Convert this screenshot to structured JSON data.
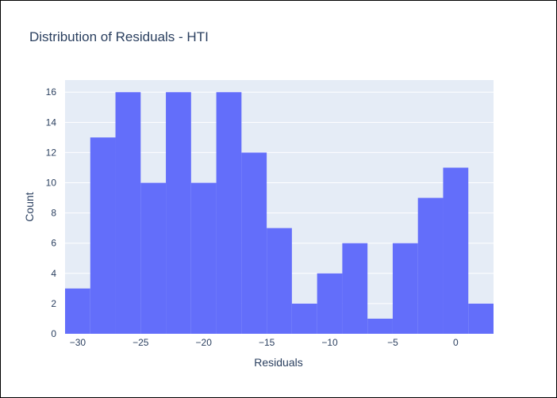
{
  "chart_data": {
    "type": "bar",
    "title": "Distribution of Residuals - HTI",
    "xlabel": "Residuals",
    "ylabel": "Count",
    "bin_width": 2,
    "bins": [
      {
        "x0": -31,
        "x1": -29,
        "count": 3
      },
      {
        "x0": -29,
        "x1": -27,
        "count": 13
      },
      {
        "x0": -27,
        "x1": -25,
        "count": 16
      },
      {
        "x0": -25,
        "x1": -23,
        "count": 10
      },
      {
        "x0": -23,
        "x1": -21,
        "count": 16
      },
      {
        "x0": -21,
        "x1": -19,
        "count": 10
      },
      {
        "x0": -19,
        "x1": -17,
        "count": 16
      },
      {
        "x0": -17,
        "x1": -15,
        "count": 12
      },
      {
        "x0": -15,
        "x1": -13,
        "count": 7
      },
      {
        "x0": -13,
        "x1": -11,
        "count": 2
      },
      {
        "x0": -11,
        "x1": -9,
        "count": 4
      },
      {
        "x0": -9,
        "x1": -7,
        "count": 6
      },
      {
        "x0": -7,
        "x1": -5,
        "count": 1
      },
      {
        "x0": -5,
        "x1": -3,
        "count": 6
      },
      {
        "x0": -3,
        "x1": -1,
        "count": 9
      },
      {
        "x0": -1,
        "x1": 1,
        "count": 11
      },
      {
        "x0": 1,
        "x1": 3,
        "count": 2
      }
    ],
    "xlim": [
      -31,
      3
    ],
    "ylim": [
      0,
      16.8
    ],
    "x_ticks": [
      {
        "value": -30,
        "label": "−30"
      },
      {
        "value": -25,
        "label": "−25"
      },
      {
        "value": -20,
        "label": "−20"
      },
      {
        "value": -15,
        "label": "−15"
      },
      {
        "value": -10,
        "label": "−10"
      },
      {
        "value": -5,
        "label": "−5"
      },
      {
        "value": 0,
        "label": "0"
      }
    ],
    "y_ticks": [
      {
        "value": 0,
        "label": "0"
      },
      {
        "value": 2,
        "label": "2"
      },
      {
        "value": 4,
        "label": "4"
      },
      {
        "value": 6,
        "label": "6"
      },
      {
        "value": 8,
        "label": "8"
      },
      {
        "value": 10,
        "label": "10"
      },
      {
        "value": 12,
        "label": "12"
      },
      {
        "value": 14,
        "label": "14"
      },
      {
        "value": 16,
        "label": "16"
      }
    ],
    "grid": true,
    "colors": {
      "bar": "#636efa",
      "plot_background": "#e5ecf6",
      "gridline": "#ffffff",
      "text": "#2a3f5f"
    }
  }
}
